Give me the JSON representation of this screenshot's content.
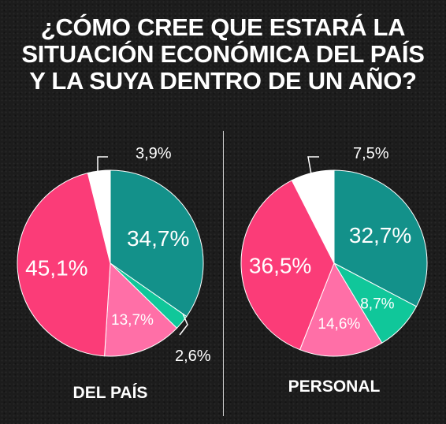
{
  "title_lines": [
    "¿CÓMO CREE QUE ESTARÁ LA",
    "SITUACIÓN ECONÓMICA DEL PAÍS",
    "Y LA SUYA DENTRO DE UN AÑO?"
  ],
  "colors": {
    "background": "#1c1c1c",
    "teal": "#13918a",
    "green": "#10c79a",
    "pink": "#ff6fa7",
    "magenta": "#fb3c78",
    "white": "#ffffff"
  },
  "chart_data": [
    {
      "type": "pie",
      "title": "DEL PAÍS",
      "slices": [
        {
          "label": "34,7%",
          "value": 34.7,
          "color": "#13918a"
        },
        {
          "label": "2,6%",
          "value": 2.6,
          "color": "#10c79a"
        },
        {
          "label": "13,7%",
          "value": 13.7,
          "color": "#ff6fa7"
        },
        {
          "label": "45,1%",
          "value": 45.1,
          "color": "#fb3c78"
        },
        {
          "label": "3,9%",
          "value": 3.9,
          "color": "#ffffff"
        }
      ]
    },
    {
      "type": "pie",
      "title": "PERSONAL",
      "slices": [
        {
          "label": "32,7%",
          "value": 32.7,
          "color": "#13918a"
        },
        {
          "label": "8,7%",
          "value": 8.7,
          "color": "#10c79a"
        },
        {
          "label": "14,6%",
          "value": 14.6,
          "color": "#ff6fa7"
        },
        {
          "label": "36,5%",
          "value": 36.5,
          "color": "#fb3c78"
        },
        {
          "label": "7,5%",
          "value": 7.5,
          "color": "#ffffff"
        }
      ]
    }
  ]
}
